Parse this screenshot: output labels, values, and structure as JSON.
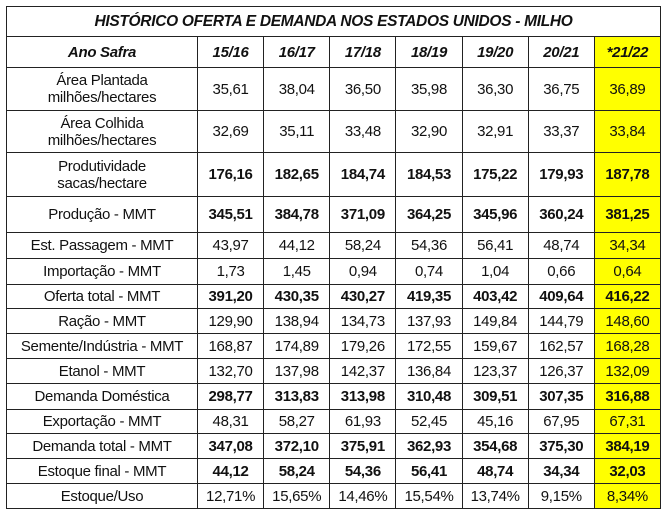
{
  "title": "HISTÓRICO OFERTA E DEMANDA NOS ESTADOS UNIDOS - MILHO",
  "header_label": "Ano Safra",
  "columns": [
    "15/16",
    "16/17",
    "17/18",
    "18/19",
    "19/20",
    "20/21",
    "*21/22"
  ],
  "highlight_color": "#ffff00",
  "rows": [
    {
      "label": "Área Plantada",
      "sublabel": "milhões/hectares",
      "bold": false,
      "values": [
        "35,61",
        "38,04",
        "36,50",
        "35,98",
        "36,30",
        "36,75",
        "36,89"
      ]
    },
    {
      "label": "Área Colhida",
      "sublabel": "milhões/hectares",
      "bold": false,
      "values": [
        "32,69",
        "35,11",
        "33,48",
        "32,90",
        "32,91",
        "33,37",
        "33,84"
      ]
    },
    {
      "label": "Produtividade",
      "sublabel": "sacas/hectare",
      "bold": true,
      "values": [
        "176,16",
        "182,65",
        "184,74",
        "184,53",
        "175,22",
        "179,93",
        "187,78"
      ]
    },
    {
      "label": "Produção - MMT",
      "bold": true,
      "values": [
        "345,51",
        "384,78",
        "371,09",
        "364,25",
        "345,96",
        "360,24",
        "381,25"
      ]
    },
    {
      "label": "Est. Passagem - MMT",
      "bold": false,
      "values": [
        "43,97",
        "44,12",
        "58,24",
        "54,36",
        "56,41",
        "48,74",
        "34,34"
      ]
    },
    {
      "label": "Importação - MMT",
      "bold": false,
      "values": [
        "1,73",
        "1,45",
        "0,94",
        "0,74",
        "1,04",
        "0,66",
        "0,64"
      ]
    },
    {
      "label": "Oferta total - MMT",
      "bold": true,
      "values": [
        "391,20",
        "430,35",
        "430,27",
        "419,35",
        "403,42",
        "409,64",
        "416,22"
      ]
    },
    {
      "label": "Ração - MMT",
      "bold": false,
      "values": [
        "129,90",
        "138,94",
        "134,73",
        "137,93",
        "149,84",
        "144,79",
        "148,60"
      ]
    },
    {
      "label": "Semente/Indústria - MMT",
      "bold": false,
      "values": [
        "168,87",
        "174,89",
        "179,26",
        "172,55",
        "159,67",
        "162,57",
        "168,28"
      ]
    },
    {
      "label": "Etanol - MMT",
      "bold": false,
      "values": [
        "132,70",
        "137,98",
        "142,37",
        "136,84",
        "123,37",
        "126,37",
        "132,09"
      ]
    },
    {
      "label": "Demanda Doméstica",
      "bold": true,
      "values": [
        "298,77",
        "313,83",
        "313,98",
        "310,48",
        "309,51",
        "307,35",
        "316,88"
      ]
    },
    {
      "label": "Exportação - MMT",
      "bold": false,
      "values": [
        "48,31",
        "58,27",
        "61,93",
        "52,45",
        "45,16",
        "67,95",
        "67,31"
      ]
    },
    {
      "label": "Demanda total - MMT",
      "bold": true,
      "values": [
        "347,08",
        "372,10",
        "375,91",
        "362,93",
        "354,68",
        "375,30",
        "384,19"
      ]
    },
    {
      "label": "Estoque final - MMT",
      "bold": true,
      "values": [
        "44,12",
        "58,24",
        "54,36",
        "56,41",
        "48,74",
        "34,34",
        "32,03"
      ]
    },
    {
      "label": "Estoque/Uso",
      "bold": false,
      "values": [
        "12,71%",
        "15,65%",
        "14,46%",
        "15,54%",
        "13,74%",
        "9,15%",
        "8,34%"
      ]
    }
  ]
}
